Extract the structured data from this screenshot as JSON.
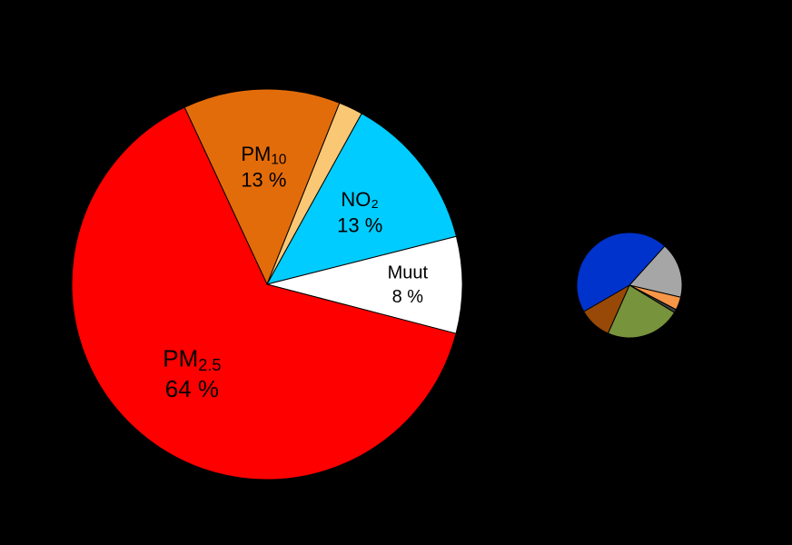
{
  "chart_data": [
    {
      "type": "pie",
      "categories": [
        "PM",
        null,
        "NO₂",
        "Muut",
        "PM"
      ],
      "category_subscripts": [
        "10",
        null,
        null,
        null,
        "2.5"
      ],
      "values": [
        13,
        2,
        13,
        8,
        64
      ],
      "value_labels": [
        "13 %",
        null,
        "13 %",
        "8 %",
        "64 %"
      ],
      "colors": [
        "#e36c0a",
        "#fac775",
        "#00ccff",
        "#ffffff",
        "#ff0000"
      ]
    },
    {
      "type": "pie",
      "categories": [
        null,
        null,
        null,
        null,
        null,
        null
      ],
      "values": [
        17,
        4,
        1,
        23,
        10,
        45
      ],
      "colors": [
        "#a6a6a6",
        "#f79646",
        "#404040",
        "#77933c",
        "#984807",
        "#0033cc"
      ]
    }
  ]
}
